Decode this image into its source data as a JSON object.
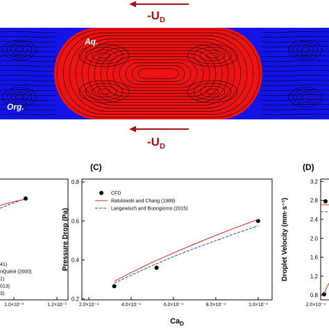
{
  "figure": {
    "flow_arrow_top": {
      "main": "-U",
      "sub": "D"
    },
    "flow_arrow_bottom": {
      "main": "-U",
      "sub": "D"
    },
    "phase_aqueous": "Aq.",
    "phase_organic": "Org."
  },
  "panel_b": {
    "x_tick_labels": [
      "1.0×10⁻³",
      "1.2×10⁻³"
    ],
    "legend_fragments": [
      "41)",
      "nQuéré (2000)",
      "1)",
      "013)",
      "3)"
    ]
  },
  "chart_data": {
    "type": "line",
    "panel_label": "(C)",
    "y_label": "Pressure Drop (Pa)",
    "x_label": {
      "main": "Ca",
      "sub": "D"
    },
    "xlim": [
      0.000167,
      0.001066
    ],
    "ylim": [
      0.195,
      0.815
    ],
    "xticks": [
      {
        "value": 0.0002,
        "label": "2.0×10⁻⁴"
      },
      {
        "value": 0.0004,
        "label": "4.0×10⁻⁴"
      },
      {
        "value": 0.0006,
        "label": "6.0×10⁻⁴"
      },
      {
        "value": 0.0008,
        "label": "8.0×10⁻⁴"
      },
      {
        "value": 0.001,
        "label": "1.0×10⁻³"
      }
    ],
    "yticks": [
      0.2,
      0.4,
      0.6,
      0.8
    ],
    "series": [
      {
        "name": "CFD",
        "kind": "points",
        "color": "#000000",
        "x": [
          0.00032,
          0.00052,
          0.001
        ],
        "values": [
          0.265,
          0.36,
          0.6
        ]
      },
      {
        "name": "Ratulowski and Chang (1989)",
        "kind": "solid",
        "color": "#e02020",
        "x": [
          0.00032,
          0.0004,
          0.0005,
          0.0006,
          0.0007,
          0.0008,
          0.0009,
          0.001
        ],
        "values": [
          0.29,
          0.335,
          0.388,
          0.436,
          0.482,
          0.526,
          0.568,
          0.608
        ]
      },
      {
        "name": "Langewisch and Buongiorno (2015)",
        "kind": "dashed",
        "color": "#2040d0",
        "x": [
          0.00032,
          0.0004,
          0.0005,
          0.0006,
          0.0007,
          0.0008,
          0.0009,
          0.001
        ],
        "values": [
          0.28,
          0.322,
          0.371,
          0.417,
          0.459,
          0.499,
          0.538,
          0.575
        ]
      }
    ]
  },
  "panel_d": {
    "panel_label": "(D)",
    "y_label": "Droplet Velocity (mm·s⁻¹)",
    "ylim": [
      0.7,
      3.25
    ],
    "yticks": [
      0.8,
      1.2,
      1.6,
      2.0,
      2.4,
      2.8,
      3.2
    ],
    "x_tick_labels": [
      "2.0×10⁻⁴"
    ]
  }
}
